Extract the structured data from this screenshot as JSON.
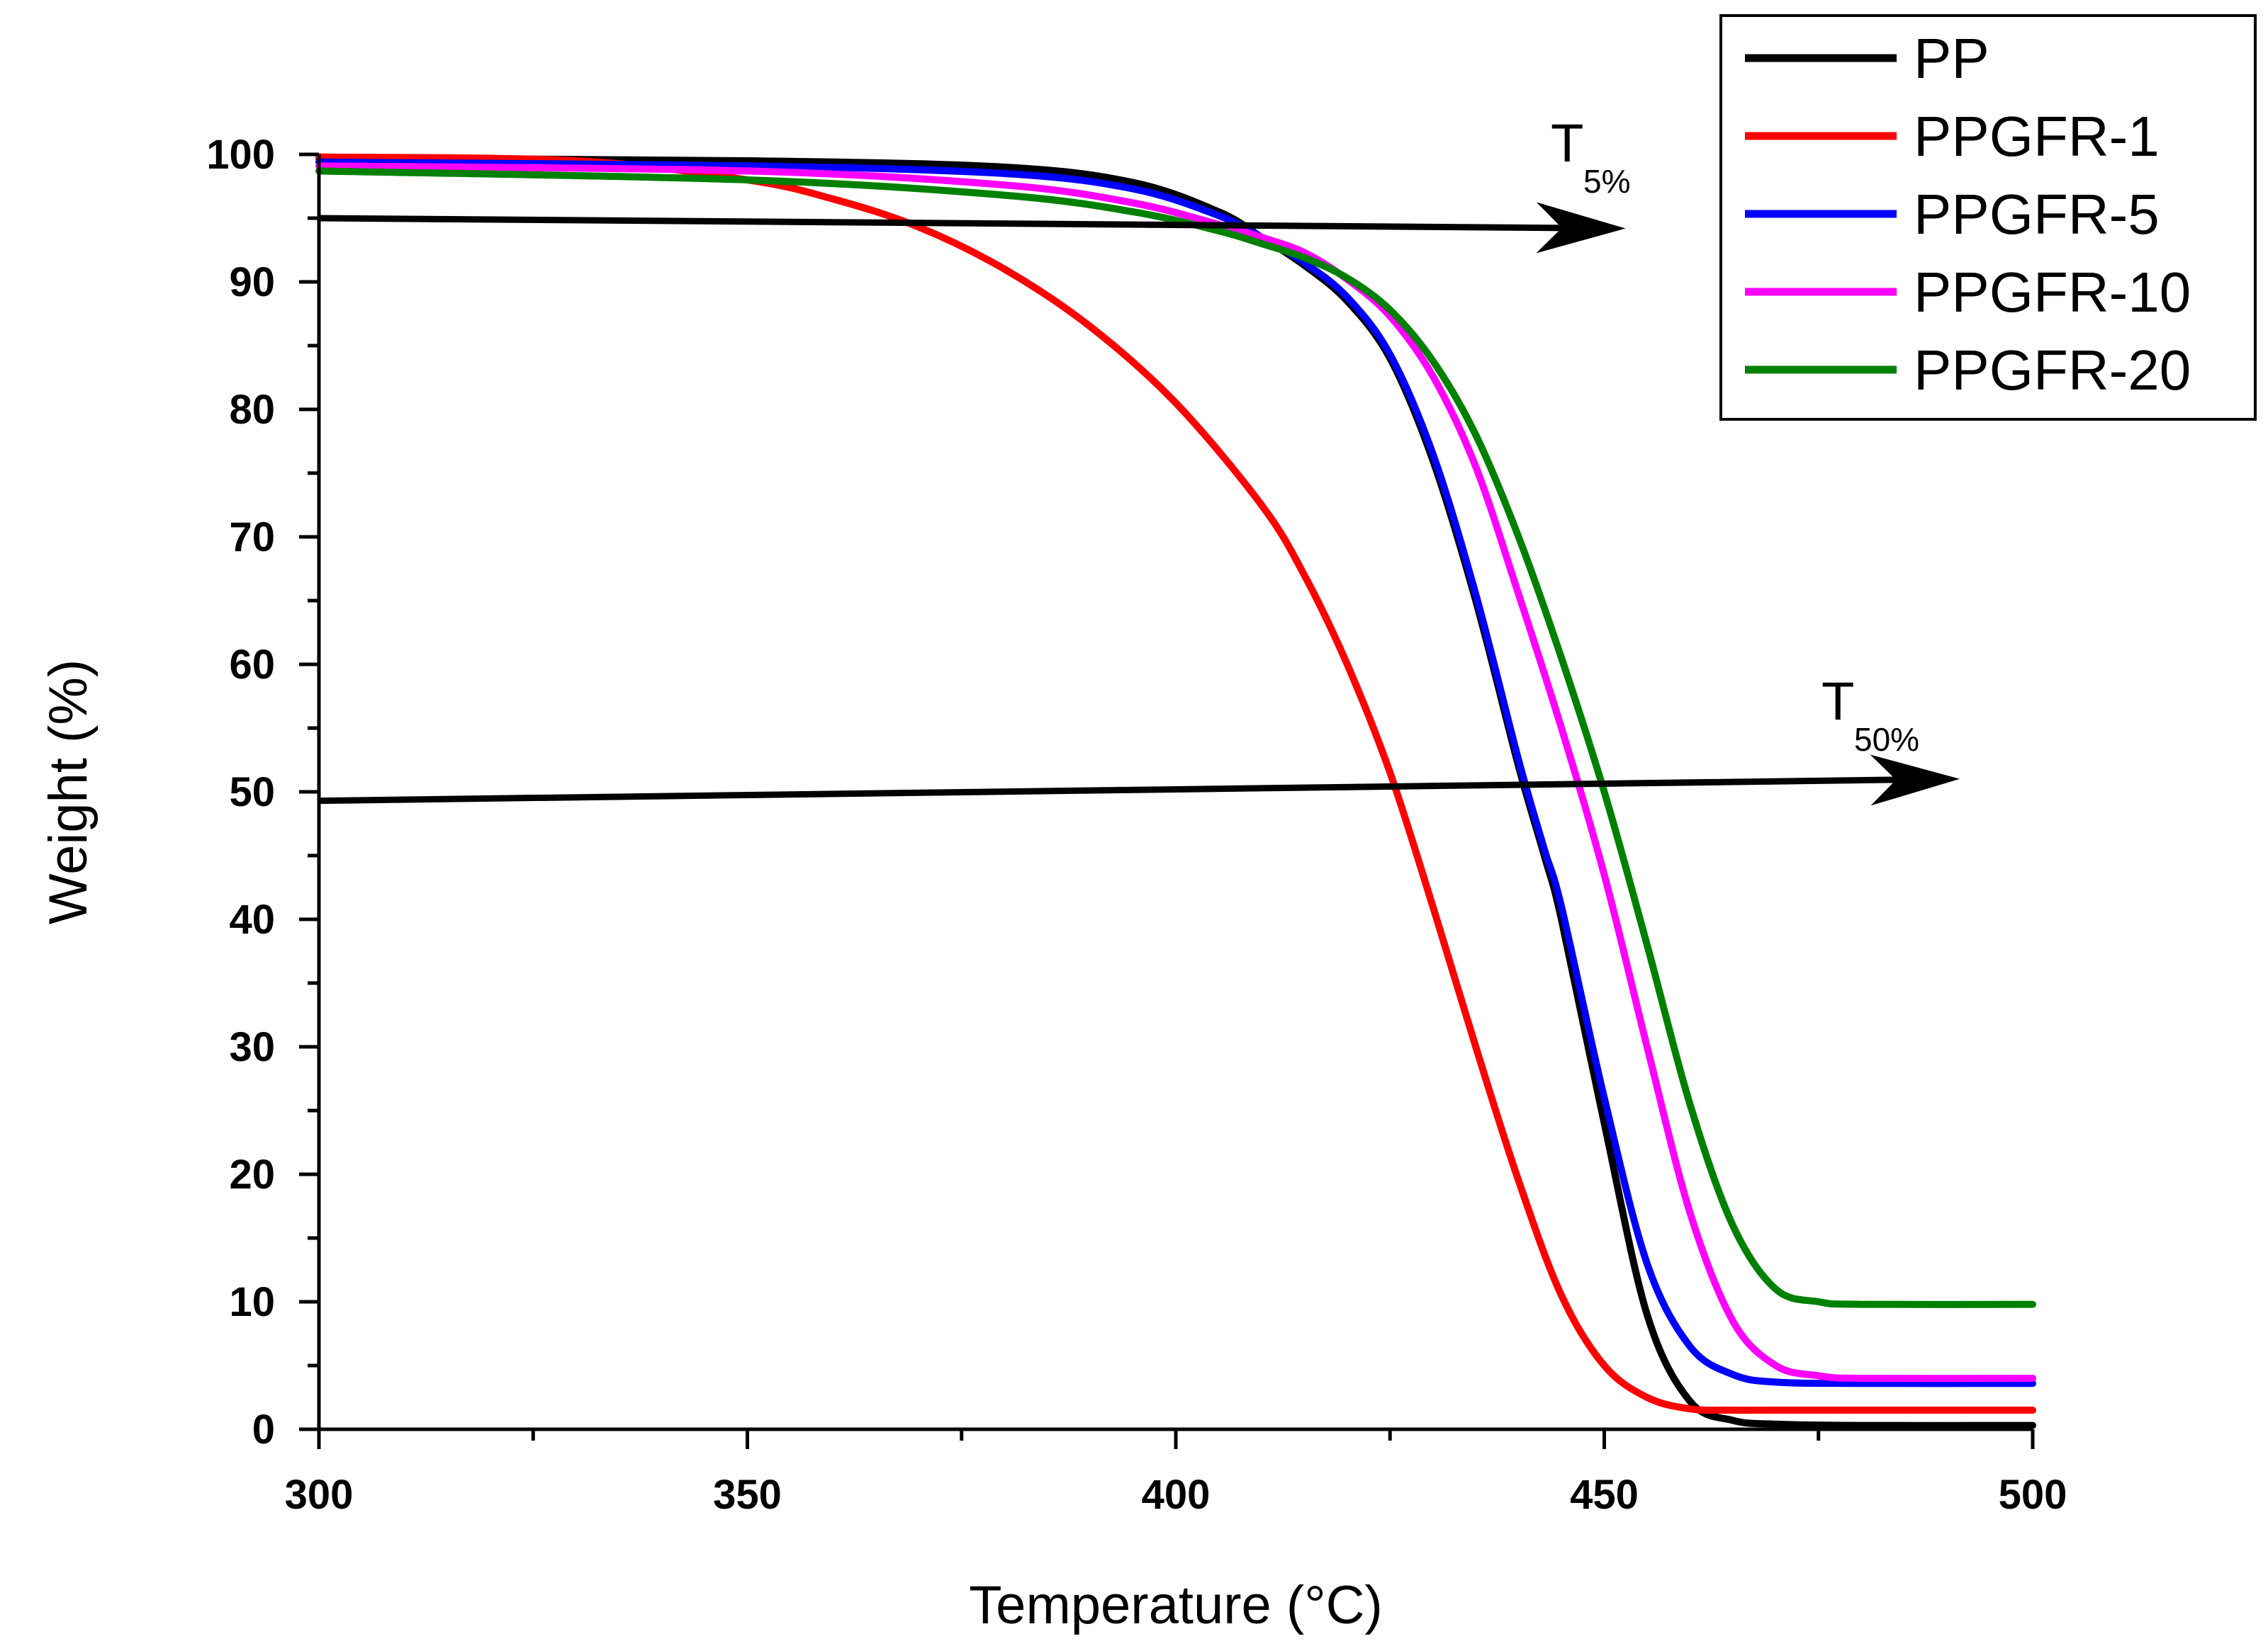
{
  "chart_data": {
    "type": "line",
    "title": "",
    "xlabel": "Temperature (°C)",
    "ylabel": "Weight (%)",
    "xlim": [
      300,
      500
    ],
    "ylim": [
      0,
      100
    ],
    "xticks": [
      300,
      350,
      400,
      450,
      500
    ],
    "xminor": [
      325,
      375,
      425,
      475
    ],
    "yticks": [
      0,
      10,
      20,
      30,
      40,
      50,
      60,
      70,
      80,
      90,
      100
    ],
    "yminor": [
      5,
      15,
      25,
      35,
      45,
      55,
      65,
      75,
      85,
      95
    ],
    "grid": false,
    "legend_position": "top-right",
    "series": [
      {
        "name": "PP",
        "color": "#000000",
        "x": [
          300,
          350,
          380,
          395,
          405,
          410,
          415,
          420,
          425,
          430,
          435,
          440,
          443,
          445,
          450,
          455,
          460,
          465,
          470,
          480,
          500
        ],
        "y": [
          99.7,
          99.5,
          99.0,
          97.8,
          95.5,
          93.5,
          91.3,
          88.5,
          84,
          76,
          65,
          52,
          45,
          40,
          24,
          9,
          2.2,
          0.7,
          0.4,
          0.3,
          0.3
        ]
      },
      {
        "name": "PPGFR-1",
        "color": "#ff0000",
        "x": [
          300,
          330,
          350,
          360,
          370,
          380,
          390,
          400,
          410,
          415,
          420,
          425,
          430,
          435,
          440,
          445,
          450,
          455,
          460,
          465,
          470,
          500
        ],
        "y": [
          99.8,
          99.5,
          98,
          96.5,
          94.3,
          91,
          86.5,
          80.5,
          72.5,
          67,
          60,
          51.5,
          41,
          30,
          19.5,
          10.5,
          5,
          2.5,
          1.6,
          1.5,
          1.5,
          1.5
        ]
      },
      {
        "name": "PPGFR-5",
        "color": "#0000ff",
        "x": [
          300,
          350,
          380,
          395,
          405,
          410,
          415,
          420,
          425,
          430,
          435,
          440,
          443,
          445,
          450,
          455,
          460,
          465,
          470,
          480,
          500
        ],
        "y": [
          99.4,
          99.1,
          98.5,
          97.3,
          95.2,
          93.5,
          91.5,
          88.8,
          84.3,
          76.5,
          65.5,
          52.5,
          45.5,
          41,
          26,
          13,
          6.5,
          4.3,
          3.7,
          3.6,
          3.6
        ]
      },
      {
        "name": "PPGFR-10",
        "color": "#ff00ff",
        "x": [
          300,
          350,
          380,
          395,
          405,
          410,
          415,
          420,
          425,
          430,
          435,
          440,
          445,
          450,
          455,
          460,
          465,
          470,
          475,
          480,
          500
        ],
        "y": [
          99.1,
          98.7,
          97.6,
          96.2,
          94.5,
          93.5,
          92.3,
          90.2,
          87.3,
          82.6,
          75.5,
          65.5,
          55,
          43.5,
          30,
          17,
          8.5,
          5,
          4.2,
          4,
          4
        ]
      },
      {
        "name": "PPGFR-20",
        "color": "#008000",
        "x": [
          300,
          350,
          380,
          395,
          405,
          410,
          415,
          420,
          425,
          430,
          435,
          440,
          445,
          450,
          455,
          460,
          465,
          470,
          475,
          480,
          500
        ],
        "y": [
          98.7,
          98.0,
          96.8,
          95.5,
          94.0,
          93.0,
          91.9,
          90.3,
          87.8,
          83.8,
          78.0,
          70,
          60.5,
          50,
          38,
          25.5,
          16,
          11,
          10,
          9.8,
          9.8
        ]
      }
    ],
    "annotations": [
      {
        "main": "T",
        "sub": "5%",
        "arrow_from": [
          300,
          95
        ],
        "arrow_to": [
          451,
          94.2
        ]
      },
      {
        "main": "T",
        "sub": "50%",
        "arrow_from": [
          300,
          49.3
        ],
        "arrow_to": [
          490,
          51
        ]
      }
    ]
  }
}
